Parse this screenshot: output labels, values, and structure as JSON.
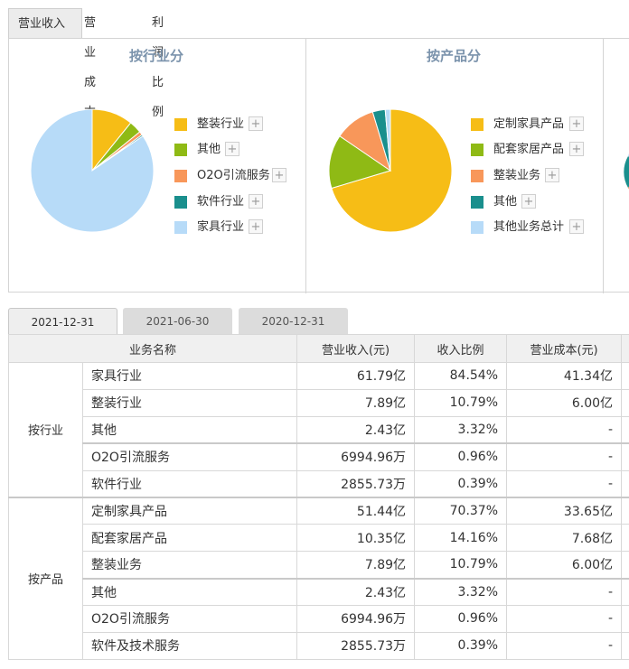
{
  "top_tabs": [
    "营业收入",
    "营业成本",
    "利润比例"
  ],
  "left_chart": {
    "title": "按行业分",
    "legend": [
      "整装行业",
      "其他",
      "O2O引流服务",
      "软件行业",
      "家具行业"
    ]
  },
  "right_chart": {
    "title": "按产品分",
    "legend": [
      "定制家具产品",
      "配套家居产品",
      "整装业务",
      "其他",
      "其他业务总计"
    ]
  },
  "colors": {
    "yellow": "#f6bd16",
    "green": "#8fba15",
    "orange": "#f8975a",
    "teal": "#1a8f8d",
    "lightblue": "#b7dbf8"
  },
  "chart_data": [
    {
      "type": "pie",
      "title": "按行业分",
      "series": [
        {
          "name": "整装行业",
          "value": 10.79
        },
        {
          "name": "其他",
          "value": 3.32
        },
        {
          "name": "O2O引流服务",
          "value": 0.96
        },
        {
          "name": "软件行业",
          "value": 0.39
        },
        {
          "name": "家具行业",
          "value": 84.54
        }
      ]
    },
    {
      "type": "pie",
      "title": "按产品分",
      "series": [
        {
          "name": "定制家具产品",
          "value": 70.37
        },
        {
          "name": "配套家居产品",
          "value": 14.16
        },
        {
          "name": "整装业务",
          "value": 10.79
        },
        {
          "name": "其他",
          "value": 3.32
        },
        {
          "name": "其他业务总计",
          "value": 1.36
        }
      ]
    }
  ],
  "date_tabs": [
    "2021-12-31",
    "2021-06-30",
    "2020-12-31"
  ],
  "table": {
    "headers": [
      "业务名称",
      "营业收入(元)",
      "收入比例",
      "营业成本(元)"
    ],
    "groups": [
      {
        "label": "按行业",
        "rows": [
          [
            "家具行业",
            "61.79亿",
            "84.54%",
            "41.34亿"
          ],
          [
            "整装行业",
            "7.89亿",
            "10.79%",
            "6.00亿"
          ],
          [
            "其他",
            "2.43亿",
            "3.32%",
            "-"
          ],
          [
            "O2O引流服务",
            "6994.96万",
            "0.96%",
            "-"
          ],
          [
            "软件行业",
            "2855.73万",
            "0.39%",
            "-"
          ]
        ]
      },
      {
        "label": "按产品",
        "rows": [
          [
            "定制家具产品",
            "51.44亿",
            "70.37%",
            "33.65亿"
          ],
          [
            "配套家居产品",
            "10.35亿",
            "14.16%",
            "7.68亿"
          ],
          [
            "整装业务",
            "7.89亿",
            "10.79%",
            "6.00亿"
          ],
          [
            "其他",
            "2.43亿",
            "3.32%",
            "-"
          ],
          [
            "O2O引流服务",
            "6994.96万",
            "0.96%",
            "-"
          ],
          [
            "软件及技术服务",
            "2855.73万",
            "0.39%",
            "-"
          ]
        ]
      }
    ]
  }
}
